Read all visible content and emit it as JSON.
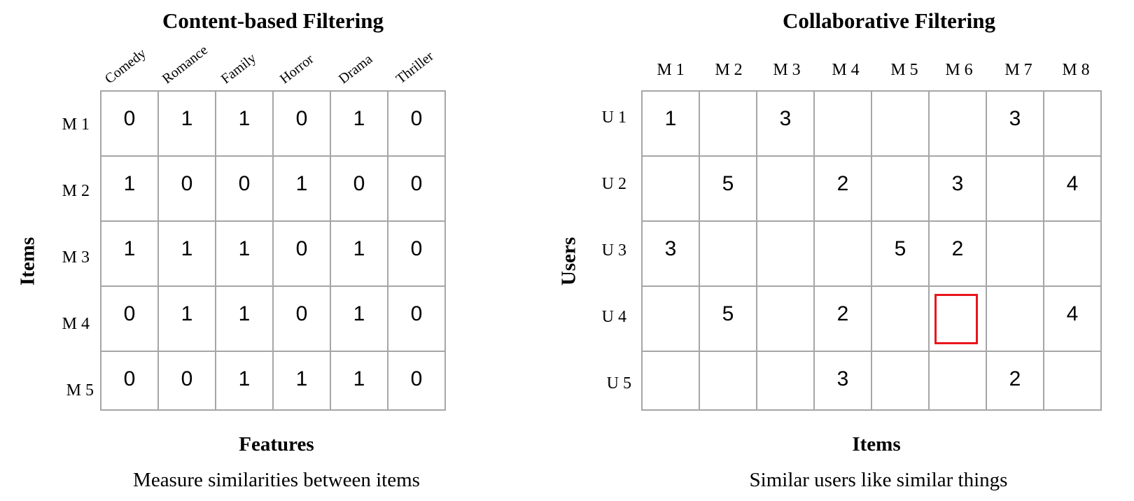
{
  "content_panel": {
    "title": "Content-based Filtering",
    "y_axis": "Items",
    "x_axis": "Features",
    "caption": "Measure similarities between items",
    "features": [
      "Comedy",
      "Romance",
      "Family",
      "Horror",
      "Drama",
      "Thriller"
    ],
    "items": [
      "M 1",
      "M 2",
      "M 3",
      "M 4",
      "M 5"
    ],
    "matrix": [
      [
        "0",
        "1",
        "1",
        "0",
        "1",
        "0"
      ],
      [
        "1",
        "0",
        "0",
        "1",
        "0",
        "0"
      ],
      [
        "1",
        "1",
        "1",
        "0",
        "1",
        "0"
      ],
      [
        "0",
        "1",
        "1",
        "0",
        "1",
        "0"
      ],
      [
        "0",
        "0",
        "1",
        "1",
        "1",
        "0"
      ]
    ]
  },
  "collab_panel": {
    "title": "Collaborative Filtering",
    "y_axis": "Users",
    "x_axis": "Items",
    "caption": "Similar users like similar things",
    "items": [
      "M 1",
      "M 2",
      "M 3",
      "M 4",
      "M 5",
      "M 6",
      "M 7",
      "M 8"
    ],
    "users": [
      "U 1",
      "U 2",
      "U 3",
      "U 4",
      "U 5"
    ],
    "matrix": [
      [
        "1",
        "",
        "3",
        "",
        "",
        "",
        "3",
        ""
      ],
      [
        "",
        "5",
        "",
        "2",
        "",
        "3",
        "",
        "4"
      ],
      [
        "3",
        "",
        "",
        "",
        "5",
        "2",
        "",
        ""
      ],
      [
        "",
        "5",
        "",
        "2",
        "",
        "",
        "",
        "4"
      ],
      [
        "",
        "",
        "",
        "3",
        "",
        "",
        "2",
        ""
      ]
    ],
    "highlight_cell": {
      "row": 3,
      "col": 5
    },
    "highlight_color": "#e8161c"
  }
}
